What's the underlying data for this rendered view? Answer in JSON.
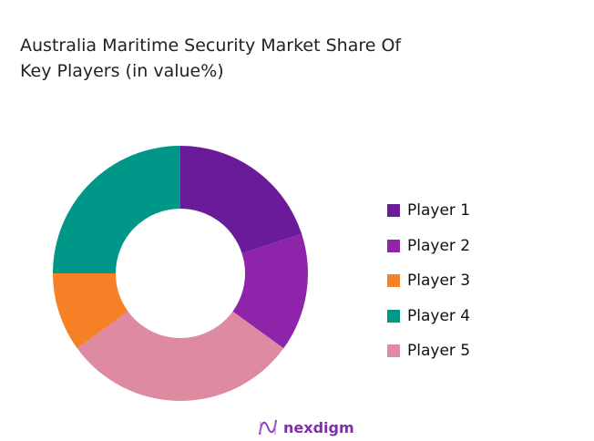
{
  "chart_data": {
    "type": "pie",
    "donut": true,
    "title": "Australia Maritime Security Market Share Of Key Players (in value%)",
    "categories": [
      "Player 1",
      "Player 2",
      "Player 3",
      "Player 4",
      "Player 5"
    ],
    "values": [
      20,
      15,
      10,
      25,
      30
    ],
    "slice_order_clockwise_from_top": [
      "Player 1",
      "Player 2",
      "Player 5",
      "Player 3",
      "Player 4"
    ],
    "colors": {
      "Player 1": "#6a1b9a",
      "Player 2": "#8e24aa",
      "Player 3": "#f58025",
      "Player 4": "#009688",
      "Player 5": "#de8aa0"
    },
    "legend_position": "right"
  },
  "logo": {
    "text": "nexdigm",
    "color": "#7b2fa8"
  }
}
